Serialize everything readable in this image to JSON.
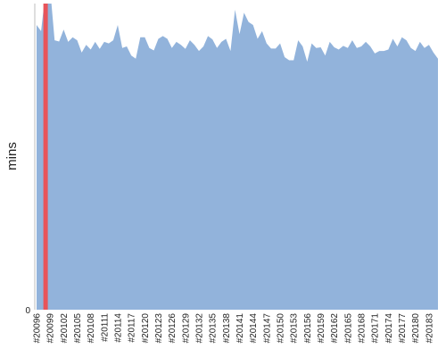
{
  "chart_data": {
    "type": "area",
    "title": "",
    "xlabel": "",
    "ylabel": "mins",
    "y_ticks": [
      "0"
    ],
    "ylim": [
      0,
      100
    ],
    "grid": false,
    "legend": "none",
    "colors": {
      "area": "#92b3db",
      "highlight": "#e8545a",
      "axis": "#bdbdbd"
    },
    "x_tick_labels": [
      "#20096",
      "#20099",
      "#20102",
      "#20105",
      "#20108",
      "#20111",
      "#20114",
      "#20117",
      "#20120",
      "#20123",
      "#20126",
      "#20129",
      "#20132",
      "#20135",
      "#20138",
      "#20141",
      "#20144",
      "#20147",
      "#20150",
      "#20153",
      "#20156",
      "#20159",
      "#20162",
      "#20165",
      "#20168",
      "#20171",
      "#20174",
      "#20177",
      "#20180",
      "#20183"
    ],
    "highlight": {
      "x": "#20098",
      "value": 100
    },
    "x": [
      "#20096",
      "#20097",
      "#20098",
      "#20099",
      "#20100",
      "#20101",
      "#20102",
      "#20103",
      "#20104",
      "#20105",
      "#20106",
      "#20107",
      "#20108",
      "#20109",
      "#20110",
      "#20111",
      "#20112",
      "#20113",
      "#20114",
      "#20115",
      "#20116",
      "#20117",
      "#20118",
      "#20119",
      "#20120",
      "#20121",
      "#20122",
      "#20123",
      "#20124",
      "#20125",
      "#20126",
      "#20127",
      "#20128",
      "#20129",
      "#20130",
      "#20131",
      "#20132",
      "#20133",
      "#20134",
      "#20135",
      "#20136",
      "#20137",
      "#20138",
      "#20139",
      "#20140",
      "#20141",
      "#20142",
      "#20143",
      "#20144",
      "#20145",
      "#20146",
      "#20147",
      "#20148",
      "#20149",
      "#20150",
      "#20151",
      "#20152",
      "#20153",
      "#20154",
      "#20155",
      "#20156",
      "#20157",
      "#20158",
      "#20159",
      "#20160",
      "#20161",
      "#20162",
      "#20163",
      "#20164",
      "#20165",
      "#20166",
      "#20167",
      "#20168",
      "#20169",
      "#20170",
      "#20171",
      "#20172",
      "#20173",
      "#20174",
      "#20175",
      "#20176",
      "#20177",
      "#20178",
      "#20179",
      "#20180",
      "#20181",
      "#20182",
      "#20183",
      "#20184",
      "#20185"
    ],
    "values": [
      93,
      91,
      104,
      108,
      88,
      87.6,
      91.5,
      87.5,
      89,
      88,
      84,
      86.5,
      85,
      87.5,
      85.2,
      87.5,
      87,
      88,
      93,
      85.5,
      86,
      83,
      82,
      89,
      89,
      85.5,
      84.7,
      88.5,
      89.4,
      88.5,
      85.5,
      87.5,
      86.5,
      85.2,
      88,
      86.5,
      84.5,
      86,
      89.4,
      88.3,
      85.5,
      87.5,
      88.5,
      84.5,
      98,
      90,
      97,
      94,
      93,
      88.5,
      91,
      87,
      85.3,
      85.3,
      87,
      82.5,
      81.5,
      81.5,
      88,
      86,
      81,
      87,
      85.5,
      85.7,
      83,
      87.5,
      85.7,
      85,
      86.2,
      85.5,
      88,
      85.5,
      86,
      87.5,
      86,
      83.7,
      84.5,
      84.5,
      85,
      88.5,
      86,
      89,
      88,
      85.5,
      84.5,
      87.5,
      85.5,
      86.5,
      84,
      82
    ]
  }
}
